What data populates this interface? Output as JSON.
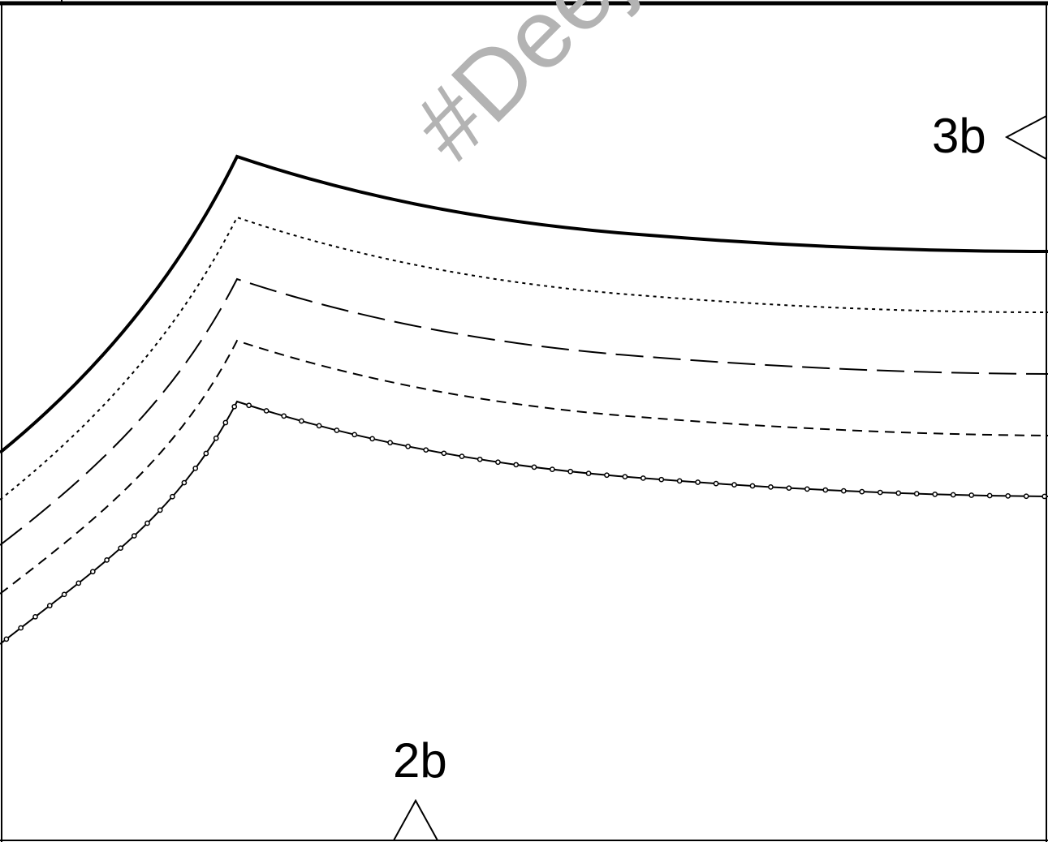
{
  "labels": {
    "notch_right": "3b",
    "notch_bottom": "2b"
  },
  "watermark": {
    "text": "#Deej"
  },
  "colors": {
    "line": "#000000",
    "watermark": "#b3b3b3",
    "background": "#ffffff"
  },
  "lines": [
    {
      "name": "size-line-1",
      "style": "solid-thick"
    },
    {
      "name": "size-line-2",
      "style": "dotted"
    },
    {
      "name": "size-line-3",
      "style": "long-dash"
    },
    {
      "name": "size-line-4",
      "style": "short-dash"
    },
    {
      "name": "size-line-5",
      "style": "solid-with-dots"
    }
  ]
}
